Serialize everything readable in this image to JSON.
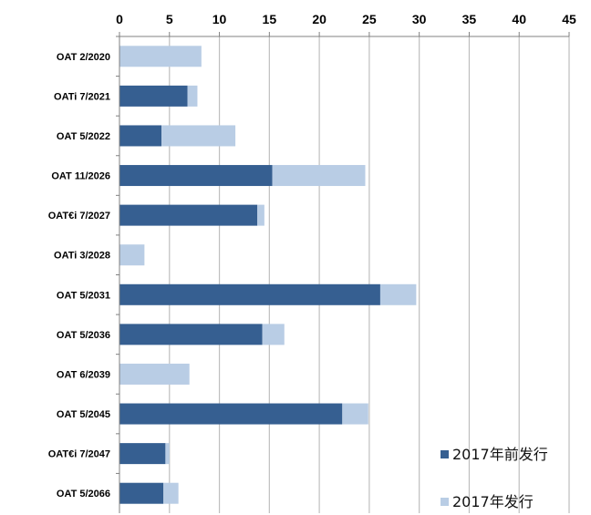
{
  "chart_data": {
    "type": "bar",
    "orientation": "horizontal",
    "stacked": true,
    "categories": [
      "OAT 2/2020",
      "OATi 7/2021",
      "OAT 5/2022",
      "OAT 11/2026",
      "OAT€i 7/2027",
      "OATi 3/2028",
      "OAT 5/2031",
      "OAT 5/2036",
      "OAT 6/2039",
      "OAT 5/2045",
      "OAT€i 7/2047",
      "OAT 5/2066"
    ],
    "series": [
      {
        "name": "2017年前发行",
        "color": "#365f91",
        "values": [
          0,
          6.8,
          4.2,
          15.3,
          13.8,
          0,
          26.1,
          14.3,
          0,
          22.3,
          4.6,
          4.4
        ]
      },
      {
        "name": "2017年发行",
        "color": "#b9cde5",
        "values": [
          8.2,
          1.0,
          7.4,
          9.3,
          0.7,
          2.5,
          3.6,
          2.2,
          7.0,
          2.6,
          0.4,
          1.5
        ]
      }
    ],
    "xaxis": {
      "position": "top",
      "min": 0,
      "max": 45,
      "ticks": [
        0,
        5,
        10,
        15,
        20,
        25,
        30,
        35,
        40,
        45
      ]
    },
    "grid": "vertical",
    "legend": "bottom-right"
  }
}
